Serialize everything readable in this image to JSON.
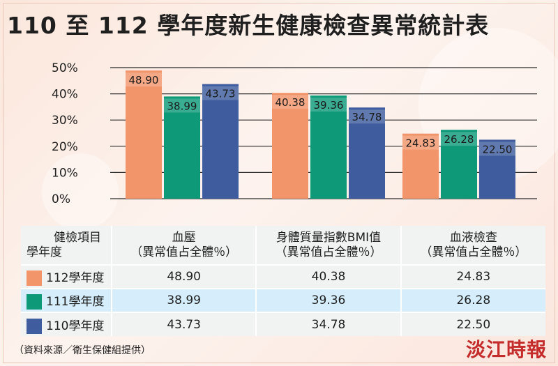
{
  "title": "110 至 112 學年度新生健康檢查異常統計表",
  "chart_data": {
    "type": "bar",
    "categories": [
      "血壓",
      "身體質量指數BMI值",
      "血液檢查"
    ],
    "series": [
      {
        "name": "112學年度",
        "values": [
          48.9,
          40.38,
          24.83
        ],
        "color": "#f2956b"
      },
      {
        "name": "111學年度",
        "values": [
          38.99,
          39.36,
          26.28
        ],
        "color": "#0e9a79"
      },
      {
        "name": "110學年度",
        "values": [
          43.73,
          34.78,
          22.5
        ],
        "color": "#3e5c9e"
      }
    ],
    "value_labels": [
      "48.90",
      "38.99",
      "43.73",
      "40.38",
      "39.36",
      "34.78",
      "24.83",
      "26.28",
      "22.50"
    ],
    "yticks": [
      "0%",
      "10%",
      "20%",
      "30%",
      "40%",
      "50%"
    ],
    "ylim": [
      0,
      50
    ],
    "grid": true
  },
  "table": {
    "header": {
      "col0_line1": "健檢項目",
      "col0_line2": "學年度",
      "col1_line1": "血壓",
      "col1_line2": "（異常值占全體％）",
      "col2_line1": "身體質量指數BMI值",
      "col2_line2": "（異常值占全體％）",
      "col3_line1": "血液檢查",
      "col3_line2": "（異常值占全體％）"
    },
    "rows": [
      {
        "label": "112學年度",
        "color": "#f2956b",
        "v1": "48.90",
        "v2": "40.38",
        "v3": "24.83"
      },
      {
        "label": "111學年度",
        "color": "#0e9a79",
        "v1": "38.99",
        "v2": "39.36",
        "v3": "26.28"
      },
      {
        "label": "110學年度",
        "color": "#3e5c9e",
        "v1": "43.73",
        "v2": "34.78",
        "v3": "22.50"
      }
    ]
  },
  "source": "（資料來源／衛生保健組提供）",
  "logo": "淡江時報"
}
